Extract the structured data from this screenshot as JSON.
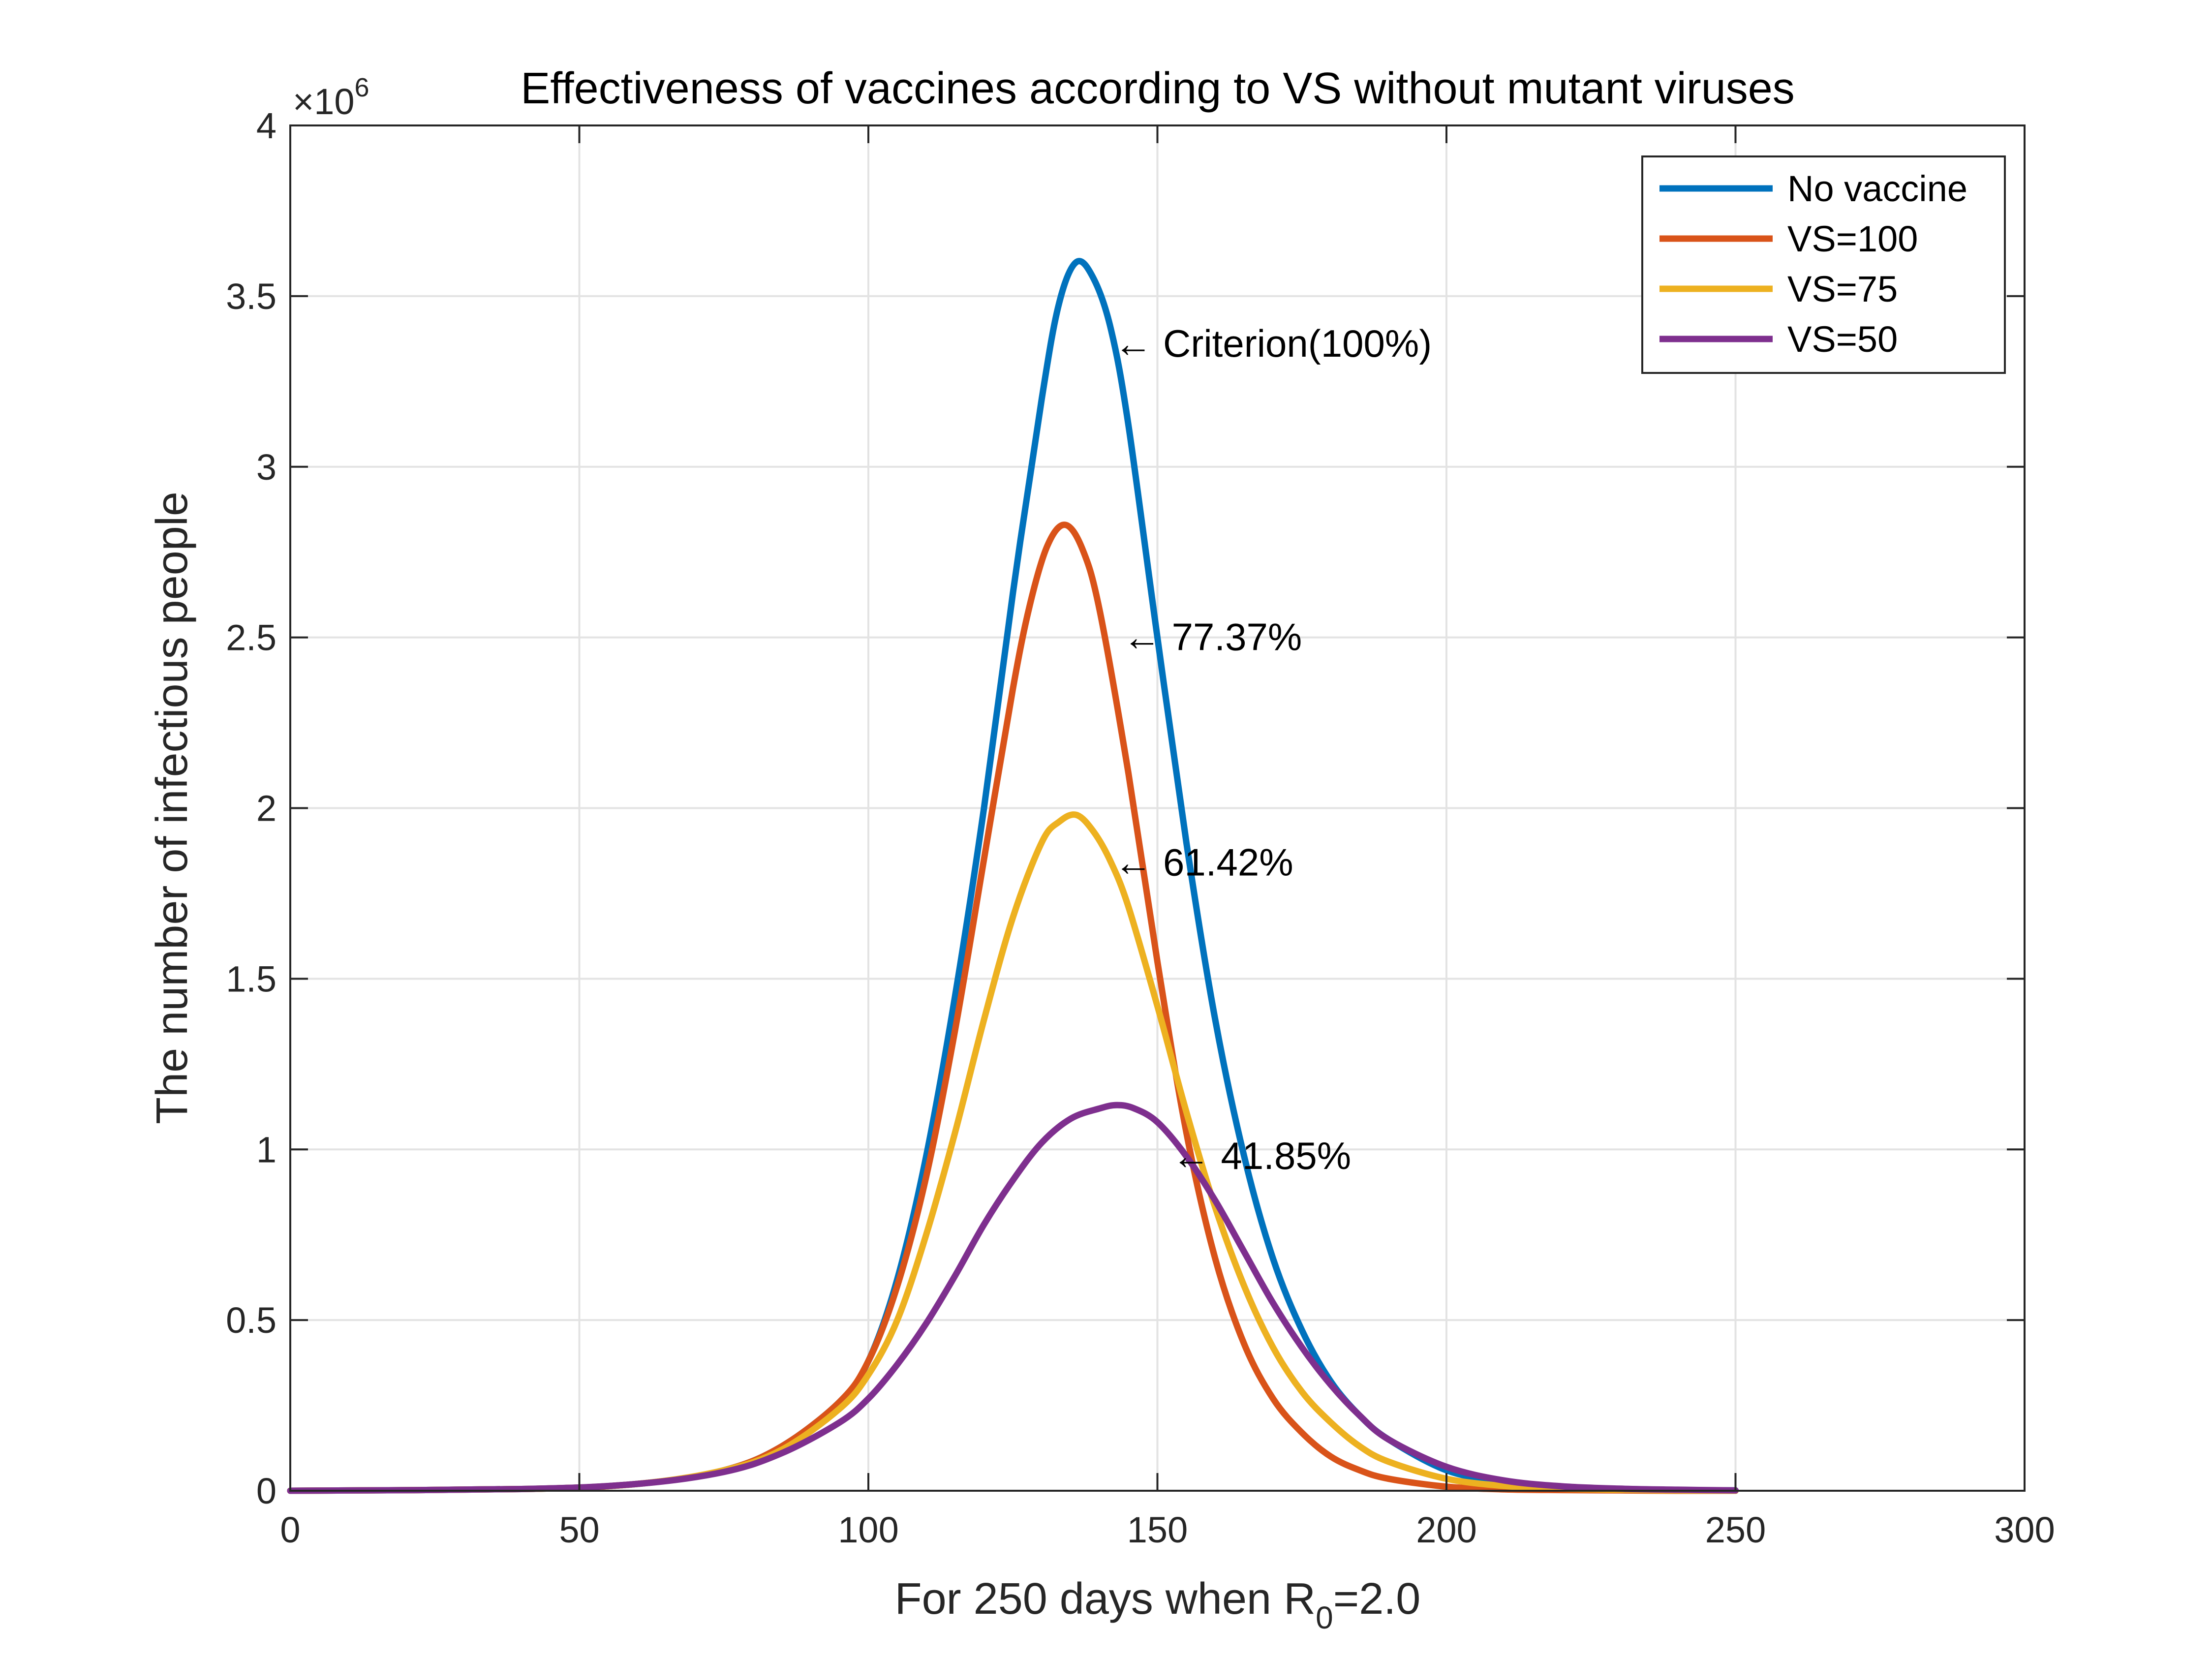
{
  "chart_data": {
    "type": "line",
    "title": "Effectiveness of vaccines according to VS without mutant viruses",
    "xlabel": {
      "main": "For 250 days when R",
      "sub": "0",
      "post": "=2.0"
    },
    "ylabel": "The number of infectious people",
    "y_exponent": {
      "prefix": "×10",
      "power": "6"
    },
    "xlim": [
      0,
      300
    ],
    "ylim": [
      0,
      4
    ],
    "xticks": [
      0,
      50,
      100,
      150,
      200,
      250,
      300
    ],
    "xtick_labels": [
      "0",
      "50",
      "100",
      "150",
      "200",
      "250",
      "300"
    ],
    "yticks": [
      0,
      0.5,
      1,
      1.5,
      2,
      2.5,
      3,
      3.5,
      4
    ],
    "ytick_labels": [
      "0",
      "0.5",
      "1",
      "1.5",
      "2",
      "2.5",
      "3",
      "3.5",
      "4"
    ],
    "grid": true,
    "legend_position": "top-right",
    "series": [
      {
        "name": "No vaccine",
        "color": "#0072bd",
        "x": [
          0,
          40,
          60,
          75,
          85,
          95,
          100,
          105,
          110,
          115,
          120,
          125,
          130,
          133,
          136,
          139,
          142,
          145,
          150,
          155,
          160,
          165,
          170,
          175,
          180,
          185,
          190,
          200,
          210,
          220,
          230,
          240,
          250
        ],
        "y": [
          0,
          0.005,
          0.02,
          0.06,
          0.13,
          0.26,
          0.38,
          0.62,
          0.98,
          1.45,
          2.0,
          2.63,
          3.2,
          3.48,
          3.6,
          3.55,
          3.4,
          3.12,
          2.5,
          1.9,
          1.38,
          0.98,
          0.68,
          0.47,
          0.32,
          0.22,
          0.15,
          0.06,
          0.025,
          0.01,
          0.004,
          0.002,
          0.001
        ]
      },
      {
        "name": "VS=100",
        "color": "#d95319",
        "x": [
          0,
          40,
          60,
          75,
          85,
          95,
          100,
          105,
          110,
          115,
          120,
          125,
          128,
          131,
          134,
          137,
          140,
          145,
          150,
          155,
          160,
          165,
          170,
          175,
          180,
          185,
          190,
          200,
          210,
          220,
          230,
          240,
          250
        ],
        "y": [
          0,
          0.005,
          0.02,
          0.06,
          0.13,
          0.26,
          0.38,
          0.6,
          0.92,
          1.35,
          1.85,
          2.35,
          2.6,
          2.77,
          2.83,
          2.76,
          2.58,
          2.1,
          1.55,
          1.05,
          0.68,
          0.43,
          0.27,
          0.17,
          0.1,
          0.06,
          0.035,
          0.012,
          0.004,
          0.002,
          0.001,
          0.0,
          0.0
        ]
      },
      {
        "name": "VS=75",
        "color": "#edb120",
        "x": [
          0,
          40,
          60,
          75,
          85,
          95,
          100,
          105,
          110,
          115,
          120,
          125,
          130,
          133,
          136,
          139,
          142,
          145,
          150,
          155,
          160,
          165,
          170,
          175,
          180,
          185,
          190,
          200,
          210,
          220,
          230,
          240,
          250
        ],
        "y": [
          0,
          0.005,
          0.02,
          0.06,
          0.12,
          0.24,
          0.34,
          0.5,
          0.75,
          1.05,
          1.38,
          1.68,
          1.9,
          1.96,
          1.98,
          1.93,
          1.84,
          1.71,
          1.42,
          1.11,
          0.83,
          0.6,
          0.42,
          0.29,
          0.2,
          0.13,
          0.085,
          0.035,
          0.014,
          0.006,
          0.003,
          0.001,
          0.0
        ]
      },
      {
        "name": "VS=50",
        "color": "#7e2f8e",
        "x": [
          0,
          40,
          60,
          75,
          85,
          95,
          100,
          105,
          110,
          115,
          120,
          125,
          130,
          135,
          140,
          143,
          146,
          150,
          155,
          160,
          165,
          170,
          175,
          180,
          185,
          190,
          200,
          210,
          220,
          230,
          240,
          250
        ],
        "y": [
          0,
          0.005,
          0.02,
          0.055,
          0.11,
          0.2,
          0.27,
          0.37,
          0.49,
          0.63,
          0.78,
          0.91,
          1.02,
          1.09,
          1.12,
          1.13,
          1.12,
          1.08,
          0.98,
          0.85,
          0.7,
          0.55,
          0.42,
          0.31,
          0.22,
          0.15,
          0.07,
          0.03,
          0.013,
          0.006,
          0.003,
          0.001
        ]
      }
    ],
    "annotations": [
      {
        "text": "← Criterion(100%)",
        "x": 142.5,
        "y": 3.36
      },
      {
        "text": "← 77.37%",
        "x": 144,
        "y": 2.5
      },
      {
        "text": "← 61.42%",
        "x": 142.5,
        "y": 1.84
      },
      {
        "text": "← 41.85%",
        "x": 152.5,
        "y": 0.98
      }
    ]
  }
}
